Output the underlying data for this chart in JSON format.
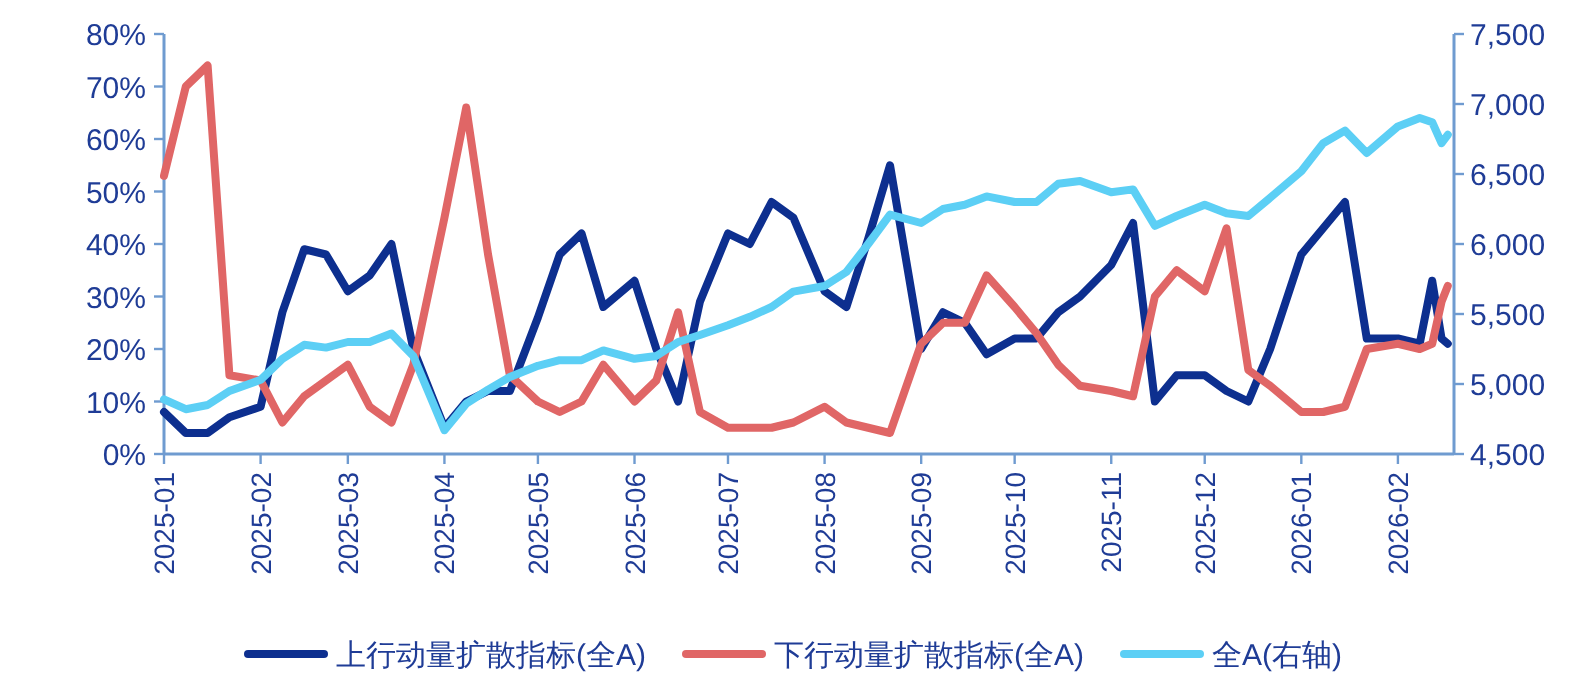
{
  "chart_data": {
    "type": "line",
    "x": [
      "2025-01-01",
      "2025-01-08",
      "2025-01-15",
      "2025-01-22",
      "2025-02-01",
      "2025-02-08",
      "2025-02-15",
      "2025-02-22",
      "2025-03-01",
      "2025-03-08",
      "2025-03-15",
      "2025-03-22",
      "2025-04-01",
      "2025-04-08",
      "2025-04-15",
      "2025-04-22",
      "2025-05-01",
      "2025-05-08",
      "2025-05-15",
      "2025-05-22",
      "2025-06-01",
      "2025-06-08",
      "2025-06-15",
      "2025-06-22",
      "2025-07-01",
      "2025-07-08",
      "2025-07-15",
      "2025-07-22",
      "2025-08-01",
      "2025-08-08",
      "2025-08-15",
      "2025-08-22",
      "2025-09-01",
      "2025-09-08",
      "2025-09-15",
      "2025-09-22",
      "2025-10-01",
      "2025-10-08",
      "2025-10-15",
      "2025-10-22",
      "2025-11-01",
      "2025-11-08",
      "2025-11-15",
      "2025-11-22",
      "2025-12-01",
      "2025-12-08",
      "2025-12-15",
      "2025-12-22",
      "2026-01-01",
      "2026-01-08",
      "2026-01-15",
      "2026-01-22",
      "2026-02-01",
      "2026-02-08",
      "2026-02-12",
      "2026-02-15",
      "2026-02-17"
    ],
    "series": [
      {
        "name": "上行动量扩散指标(全A)",
        "color": "#0d2f8f",
        "values": [
          8,
          4,
          4,
          7,
          9,
          27,
          39,
          38,
          31,
          34,
          40,
          20,
          5,
          10,
          12,
          12,
          26,
          38,
          42,
          28,
          33,
          20,
          10,
          29,
          42,
          40,
          48,
          45,
          31,
          28,
          41,
          55,
          20,
          27,
          25,
          19,
          22,
          22,
          27,
          30,
          36,
          44,
          10,
          15,
          15,
          12,
          10,
          20,
          38,
          43,
          48,
          22,
          22,
          21,
          33,
          22,
          21
        ]
      },
      {
        "name": "下行动量扩散指标(全A)",
        "color": "#e06666",
        "values": [
          53,
          70,
          74,
          15,
          14,
          6,
          11,
          14,
          17,
          9,
          6,
          17,
          45,
          66,
          38,
          15,
          10,
          8,
          10,
          17,
          10,
          14,
          27,
          8,
          5,
          5,
          5,
          6,
          9,
          6,
          5,
          4,
          21,
          25,
          25,
          34,
          28,
          23,
          17,
          13,
          12,
          11,
          30,
          35,
          31,
          43,
          16,
          13,
          8,
          8,
          9,
          20,
          21,
          20,
          21,
          29,
          32
        ]
      },
      {
        "name": "全A(右轴)",
        "color": "#5ccff5",
        "axis": "y2",
        "values": [
          4890,
          4820,
          4850,
          4950,
          5030,
          5180,
          5280,
          5260,
          5300,
          5300,
          5360,
          5200,
          4670,
          4860,
          4960,
          5050,
          5130,
          5170,
          5170,
          5240,
          5180,
          5200,
          5300,
          5350,
          5420,
          5480,
          5550,
          5660,
          5700,
          5800,
          6000,
          6210,
          6150,
          6250,
          6280,
          6340,
          6300,
          6300,
          6430,
          6450,
          6370,
          6390,
          6130,
          6200,
          6280,
          6220,
          6200,
          6330,
          6520,
          6720,
          6810,
          6650,
          6840,
          6900,
          6870,
          6720,
          6780
        ]
      }
    ],
    "xlim": [
      "2025-01-01",
      "2026-02-19"
    ],
    "xticks": [
      {
        "value": "2025-01-01",
        "label": "2025-01"
      },
      {
        "value": "2025-02-01",
        "label": "2025-02"
      },
      {
        "value": "2025-03-01",
        "label": "2025-03"
      },
      {
        "value": "2025-04-01",
        "label": "2025-04"
      },
      {
        "value": "2025-05-01",
        "label": "2025-05"
      },
      {
        "value": "2025-06-01",
        "label": "2025-06"
      },
      {
        "value": "2025-07-01",
        "label": "2025-07"
      },
      {
        "value": "2025-08-01",
        "label": "2025-08"
      },
      {
        "value": "2025-09-01",
        "label": "2025-09"
      },
      {
        "value": "2025-10-01",
        "label": "2025-10"
      },
      {
        "value": "2025-11-01",
        "label": "2025-11"
      },
      {
        "value": "2025-12-01",
        "label": "2025-12"
      },
      {
        "value": "2026-01-01",
        "label": "2026-01"
      },
      {
        "value": "2026-02-01",
        "label": "2026-02"
      }
    ],
    "ylim": [
      0,
      80
    ],
    "yticks": [
      {
        "value": 0,
        "label": "0%"
      },
      {
        "value": 10,
        "label": "10%"
      },
      {
        "value": 20,
        "label": "20%"
      },
      {
        "value": 30,
        "label": "30%"
      },
      {
        "value": 40,
        "label": "40%"
      },
      {
        "value": 50,
        "label": "50%"
      },
      {
        "value": 60,
        "label": "60%"
      },
      {
        "value": 70,
        "label": "70%"
      },
      {
        "value": 80,
        "label": "80%"
      }
    ],
    "y2lim": [
      4500,
      7500
    ],
    "y2ticks": [
      {
        "value": 4500,
        "label": "4,500"
      },
      {
        "value": 5000,
        "label": "5,000"
      },
      {
        "value": 5500,
        "label": "5,500"
      },
      {
        "value": 6000,
        "label": "6,000"
      },
      {
        "value": 6500,
        "label": "6,500"
      },
      {
        "value": 7000,
        "label": "7,000"
      },
      {
        "value": 7500,
        "label": "7,500"
      }
    ],
    "grid": false,
    "legend": "bottom",
    "marker": "none",
    "line_style": "solid"
  }
}
